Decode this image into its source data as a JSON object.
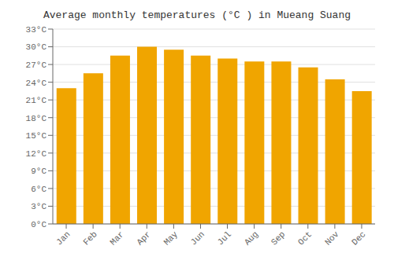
{
  "chart_data": {
    "type": "bar",
    "title": "Average monthly temperatures (°C ) in Mueang Suang",
    "categories": [
      "Jan",
      "Feb",
      "Mar",
      "Apr",
      "May",
      "Jun",
      "Jul",
      "Aug",
      "Sep",
      "Oct",
      "Nov",
      "Dec"
    ],
    "values": [
      23.0,
      25.5,
      28.5,
      30.0,
      29.5,
      28.5,
      28.0,
      27.5,
      27.5,
      26.5,
      24.5,
      22.5
    ],
    "color": "#F0A500",
    "ylim": [
      0,
      33
    ],
    "yticks": [
      {
        "value": 0,
        "label": "0°C"
      },
      {
        "value": 3,
        "label": "3°C"
      },
      {
        "value": 6,
        "label": "6°C"
      },
      {
        "value": 9,
        "label": "9°C"
      },
      {
        "value": 12,
        "label": "12°C"
      },
      {
        "value": 15,
        "label": "15°C"
      },
      {
        "value": 18,
        "label": "18°C"
      },
      {
        "value": 21,
        "label": "21°C"
      },
      {
        "value": 24,
        "label": "24°C"
      },
      {
        "value": 27,
        "label": "27°C"
      },
      {
        "value": 30,
        "label": "30°C"
      },
      {
        "value": 33,
        "label": "33°C"
      }
    ],
    "grid": true
  }
}
